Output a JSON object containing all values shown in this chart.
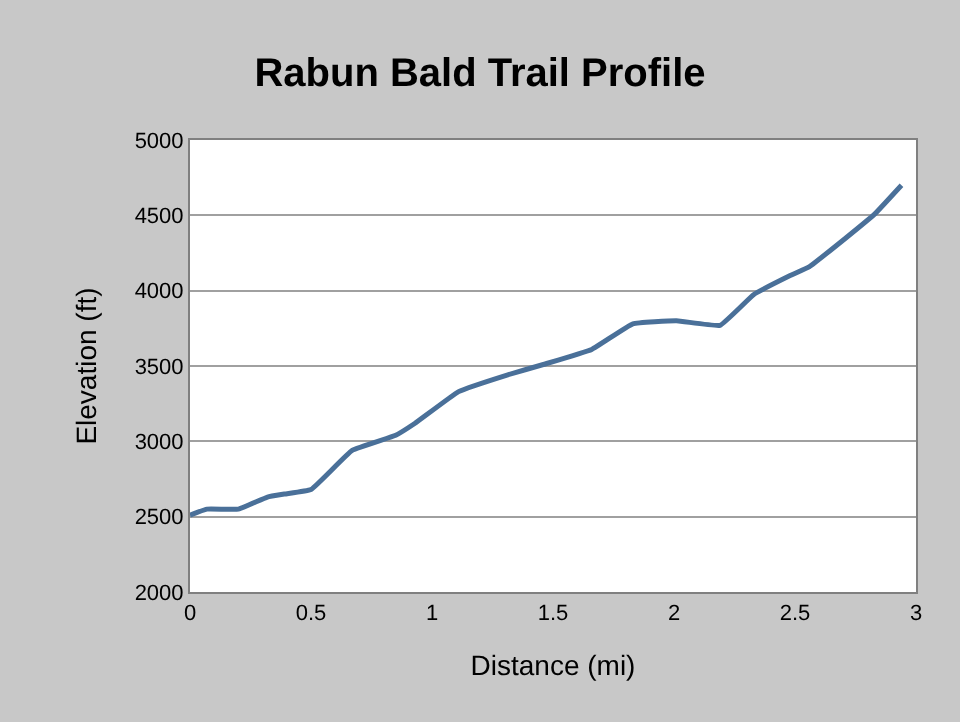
{
  "chart_data": {
    "type": "line",
    "title": "Rabun Bald Trail Profile",
    "xlabel": "Distance (mi)",
    "ylabel": "Elevation (ft)",
    "x": [
      0,
      0.07,
      0.2,
      0.32,
      0.39,
      0.5,
      0.67,
      0.85,
      0.93,
      1.11,
      1.31,
      1.46,
      1.66,
      1.83,
      2.01,
      2.19,
      2.33,
      2.48,
      2.56,
      2.71,
      2.83,
      2.94
    ],
    "series": [
      {
        "color": "#4a7099",
        "values": [
          2510,
          2550,
          2550,
          2630,
          2650,
          2680,
          2940,
          3040,
          3120,
          3330,
          3440,
          3510,
          3610,
          3780,
          3800,
          3770,
          3975,
          4100,
          4160,
          4350,
          4510,
          4700
        ]
      }
    ],
    "xlim": [
      0,
      3
    ],
    "xticks": [
      0,
      0.5,
      1,
      1.5,
      2,
      2.5,
      3
    ],
    "ylim": [
      2000,
      5000
    ],
    "yticks": [
      2000,
      2500,
      3000,
      3500,
      4000,
      4500,
      5000
    ],
    "grid": "y",
    "legend": false,
    "marker": "none",
    "line_style": "solid"
  }
}
